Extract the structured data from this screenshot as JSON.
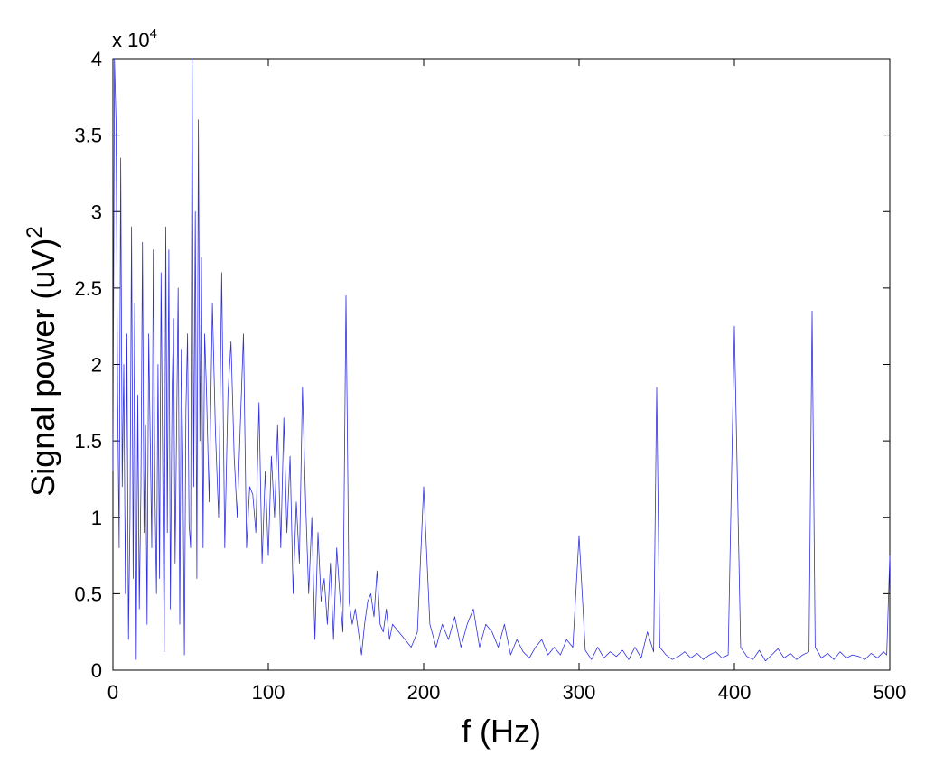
{
  "chart_data": {
    "type": "line",
    "xlabel": "f (Hz)",
    "ylabel_base": "Signal power (uV)",
    "ylabel_sup": "2",
    "y_exponent_base": "x 10",
    "y_exponent_power": "4",
    "xlim": [
      0,
      500
    ],
    "ylim": [
      0,
      40000
    ],
    "x_ticks": [
      0,
      100,
      200,
      300,
      400,
      500
    ],
    "x_tick_labels": [
      "0",
      "100",
      "200",
      "300",
      "400",
      "500"
    ],
    "y_ticks": [
      0,
      5000,
      10000,
      15000,
      20000,
      25000,
      30000,
      35000,
      40000
    ],
    "y_tick_labels": [
      "0",
      "0.5",
      "1",
      "1.5",
      "2",
      "2.5",
      "3",
      "3.5",
      "4"
    ],
    "grid": false,
    "series": [
      {
        "color": "#3030e0",
        "x": [
          0,
          1,
          2,
          3,
          4,
          5,
          6,
          7,
          8,
          9,
          10,
          11,
          12,
          13,
          14,
          15,
          16,
          17,
          18,
          19,
          20,
          21,
          22,
          23,
          24,
          25,
          26,
          27,
          28,
          29,
          30,
          31,
          32,
          33,
          34,
          35,
          36,
          37,
          38,
          39,
          40,
          41,
          42,
          43,
          44,
          45,
          46,
          47,
          48,
          49,
          50,
          51,
          52,
          53,
          54,
          55,
          56,
          57,
          58,
          59,
          60,
          62,
          64,
          66,
          68,
          70,
          72,
          74,
          76,
          78,
          80,
          82,
          84,
          86,
          88,
          90,
          92,
          94,
          96,
          98,
          100,
          102,
          104,
          106,
          108,
          110,
          112,
          114,
          116,
          118,
          120,
          122,
          124,
          126,
          128,
          130,
          132,
          134,
          136,
          138,
          140,
          142,
          144,
          146,
          148,
          150,
          152,
          154,
          156,
          158,
          160,
          162,
          164,
          166,
          168,
          170,
          172,
          174,
          176,
          178,
          180,
          184,
          188,
          192,
          196,
          200,
          204,
          208,
          212,
          216,
          220,
          224,
          228,
          232,
          236,
          240,
          244,
          248,
          252,
          256,
          260,
          264,
          268,
          272,
          276,
          280,
          284,
          288,
          292,
          296,
          300,
          304,
          308,
          312,
          316,
          320,
          324,
          328,
          332,
          336,
          340,
          344,
          348,
          350,
          352,
          356,
          360,
          364,
          368,
          372,
          376,
          380,
          384,
          388,
          392,
          396,
          400,
          404,
          408,
          412,
          416,
          420,
          424,
          428,
          432,
          436,
          440,
          444,
          448,
          450,
          452,
          456,
          460,
          464,
          468,
          472,
          476,
          480,
          484,
          488,
          492,
          496,
          498,
          500
        ],
        "y": [
          13000,
          40000,
          36000,
          18000,
          8000,
          33500,
          12000,
          20000,
          5000,
          22000,
          2000,
          10000,
          29000,
          6000,
          24000,
          700,
          18000,
          4000,
          12000,
          28000,
          9000,
          16000,
          3000,
          22000,
          15000,
          8000,
          27500,
          12000,
          5000,
          20000,
          6000,
          26000,
          14000,
          1200,
          29000,
          9000,
          27500,
          4000,
          18000,
          23000,
          7000,
          16000,
          25000,
          3000,
          21000,
          14000,
          1000,
          17000,
          22000,
          9500,
          8000,
          40000,
          12000,
          30000,
          6000,
          36000,
          15000,
          27000,
          8000,
          22000,
          19000,
          11000,
          24000,
          15500,
          10000,
          26000,
          8000,
          18000,
          21500,
          14000,
          10000,
          16000,
          22000,
          8000,
          12000,
          11500,
          9000,
          17500,
          7000,
          13000,
          7500,
          14000,
          10000,
          16000,
          8000,
          16500,
          9000,
          14000,
          5000,
          11000,
          7000,
          18500,
          11000,
          5000,
          10000,
          2000,
          9000,
          4500,
          6000,
          3000,
          7000,
          2000,
          8000,
          5000,
          2500,
          24500,
          4500,
          3000,
          4000,
          2500,
          1000,
          3000,
          4500,
          5000,
          3500,
          6500,
          3000,
          2500,
          4000,
          2000,
          3000,
          2500,
          2000,
          1500,
          2500,
          12000,
          3000,
          1500,
          3000,
          2000,
          3500,
          1500,
          3000,
          4000,
          1500,
          3000,
          2500,
          1500,
          3000,
          1000,
          2000,
          1200,
          800,
          1500,
          2000,
          1000,
          1500,
          1000,
          2000,
          1500,
          8800,
          1300,
          700,
          1500,
          800,
          1200,
          900,
          1300,
          700,
          1500,
          800,
          2500,
          1200,
          18500,
          1500,
          1000,
          700,
          900,
          1200,
          800,
          1100,
          700,
          1000,
          1200,
          800,
          1000,
          22500,
          1500,
          900,
          700,
          1300,
          600,
          1000,
          1400,
          800,
          1100,
          700,
          1000,
          1200,
          23500,
          1500,
          800,
          1100,
          700,
          1200,
          800,
          1000,
          900,
          700,
          1100,
          800,
          1200,
          1000,
          7500
        ]
      }
    ]
  }
}
